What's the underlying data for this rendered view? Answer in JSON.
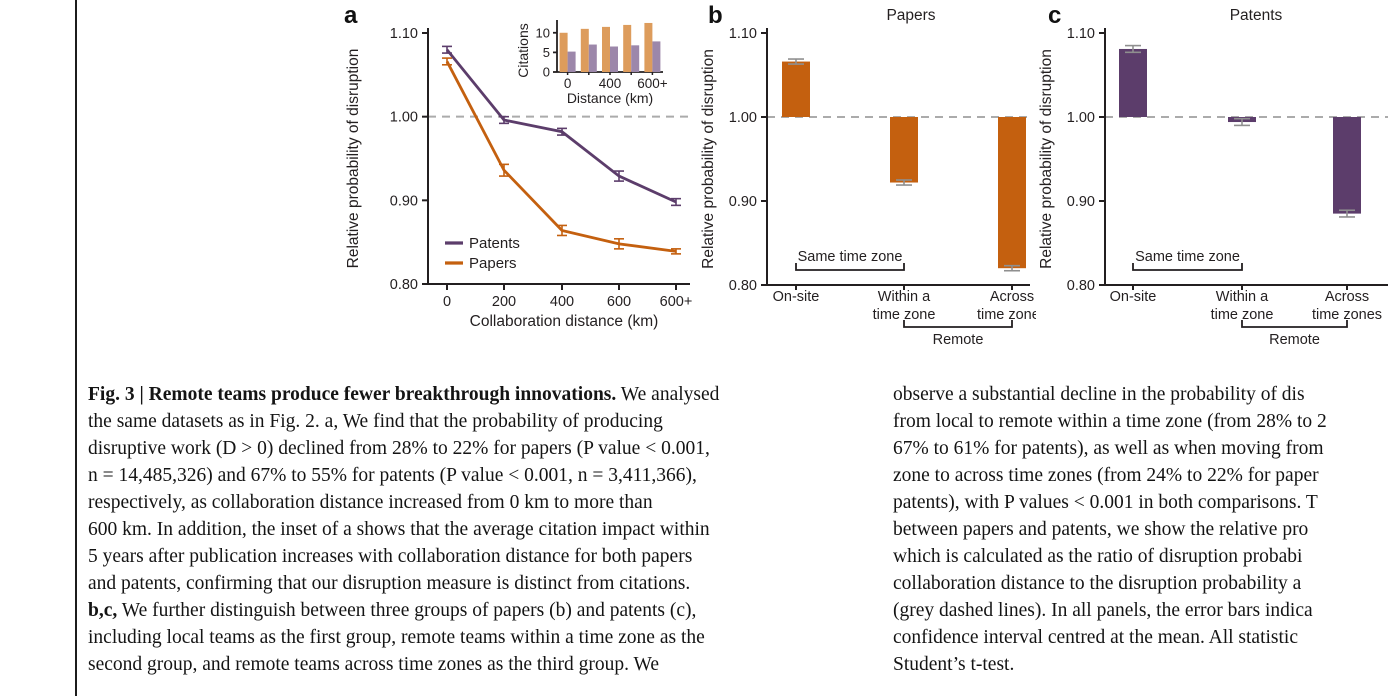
{
  "page": {
    "background": "#ffffff"
  },
  "divider_rule": {
    "color": "#1c1c1c"
  },
  "colors": {
    "papers_orange": "#c4600f",
    "papers_orange_light": "#dd9c5c",
    "patents_purple": "#5c3d6b",
    "patents_purple_light": "#9c87aa",
    "baseline_grey": "#ababab",
    "errorbar_grey": "#8f8f8f",
    "ink": "#231f20"
  },
  "chart_data": [
    {
      "panel_label": "a",
      "type": "line",
      "xlabel": "Collaboration distance (km)",
      "ylabel": "Relative probability of disruption",
      "x_categories": [
        "0",
        "200",
        "400",
        "600",
        "600+"
      ],
      "ylim": [
        0.8,
        1.1
      ],
      "ytick_labels": [
        "0.80",
        "0.90",
        "1.00",
        "1.10"
      ],
      "baseline": 1.0,
      "grid": false,
      "legend_position": "lower-left",
      "series": [
        {
          "name": "Patents",
          "color": "#5c3d6b",
          "values": [
            1.08,
            0.996,
            0.982,
            0.929,
            0.898
          ],
          "errors": [
            0.004,
            0.004,
            0.004,
            0.006,
            0.004
          ]
        },
        {
          "name": "Papers",
          "color": "#c4600f",
          "values": [
            1.066,
            0.936,
            0.864,
            0.848,
            0.839
          ],
          "errors": [
            0.004,
            0.007,
            0.006,
            0.006,
            0.003
          ]
        }
      ],
      "inset": {
        "type": "bar",
        "ylabel": "Citations",
        "xlabel": "Distance (km)",
        "yticks": [
          0,
          5,
          10
        ],
        "ytick_labels": [
          "0",
          "5",
          "10"
        ],
        "ylim": [
          0,
          13
        ],
        "x_categories": [
          "0",
          "",
          "400",
          "",
          "600+"
        ],
        "series": [
          {
            "name": "Papers",
            "color": "#dd9c5c",
            "values": [
              10,
              11,
              11.5,
              12,
              12.5
            ]
          },
          {
            "name": "Patents",
            "color": "#9c87aa",
            "values": [
              5.2,
              7.0,
              6.5,
              6.8,
              7.8
            ]
          }
        ]
      }
    },
    {
      "panel_label": "b",
      "type": "bar",
      "title": "Papers",
      "bar_color": "#c4600f",
      "ylabel": "Relative probability of disruption",
      "x_categories": [
        [
          "On-site"
        ],
        [
          "Within a",
          "time zone"
        ],
        [
          "Across",
          "time zones"
        ]
      ],
      "ylim": [
        0.8,
        1.1
      ],
      "ytick_labels": [
        "0.80",
        "0.90",
        "1.00",
        "1.10"
      ],
      "baseline": 1.0,
      "values": [
        1.066,
        0.922,
        0.82
      ],
      "errors": [
        0.003,
        0.003,
        0.003
      ],
      "group_brackets": [
        {
          "label": "Same time zone",
          "from": 0,
          "to": 1,
          "position": "above-axis"
        },
        {
          "label": "Remote",
          "from": 1,
          "to": 2,
          "position": "below-labels"
        }
      ]
    },
    {
      "panel_label": "c",
      "type": "bar",
      "title": "Patents",
      "bar_color": "#5c3d6b",
      "ylabel": "Relative probability of disruption",
      "x_categories": [
        [
          "On-site"
        ],
        [
          "Within a",
          "time zone"
        ],
        [
          "Across",
          "time zones"
        ]
      ],
      "ylim": [
        0.8,
        1.1
      ],
      "ytick_labels": [
        "0.80",
        "0.90",
        "1.00",
        "1.10"
      ],
      "baseline": 1.0,
      "values": [
        1.081,
        0.994,
        0.885
      ],
      "errors": [
        0.004,
        0.004,
        0.004
      ],
      "group_brackets": [
        {
          "label": "Same time zone",
          "from": 0,
          "to": 1,
          "position": "above-axis"
        },
        {
          "label": "Remote",
          "from": 1,
          "to": 2,
          "position": "below-labels"
        }
      ]
    }
  ],
  "caption": {
    "left_lines": [
      {
        "bold": "Fig. 3 | Remote teams produce fewer breakthrough innovations.",
        "text": " We analysed"
      },
      {
        "bold": "",
        "text": "the same datasets as in Fig. 2. a, We find that the probability of producing"
      },
      {
        "bold": "",
        "text": "disruptive work (D > 0) declined from 28% to 22% for papers (P value < 0.001,"
      },
      {
        "bold": "",
        "text": "n = 14,485,326) and 67% to 55% for patents (P value < 0.001, n = 3,411,366),"
      },
      {
        "bold": "",
        "text": "respectively, as collaboration distance increased from 0 km to more than"
      },
      {
        "bold": "",
        "text": "600 km. In addition, the inset of a shows that the average citation impact within"
      },
      {
        "bold": "",
        "text": "5 years after publication increases with collaboration distance for both papers"
      },
      {
        "bold": "",
        "text": "and patents, confirming that our disruption measure is distinct from citations."
      },
      {
        "bold": "b,c,",
        "text": " We further distinguish between three groups of papers (b) and patents (c),"
      },
      {
        "bold": "",
        "text": "including local teams as the first group, remote teams within a time zone as the"
      },
      {
        "bold": "",
        "text": "second group, and remote teams across time zones as the third group. We"
      }
    ],
    "right_lines": [
      "observe a substantial decline in the probability of dis",
      "from local to remote within a time zone (from 28% to 2",
      "67% to 61% for patents), as well as when moving from",
      "zone to across time zones (from 24% to 22% for paper",
      "patents), with P values < 0.001 in both comparisons. T",
      "between papers and patents, we show the relative pro",
      "which is calculated as the ratio of disruption probabi",
      "collaboration distance to the disruption probability a",
      "(grey dashed lines). In all panels, the error bars indica",
      "confidence interval centred at the mean. All statistic",
      "Student’s t-test."
    ]
  }
}
